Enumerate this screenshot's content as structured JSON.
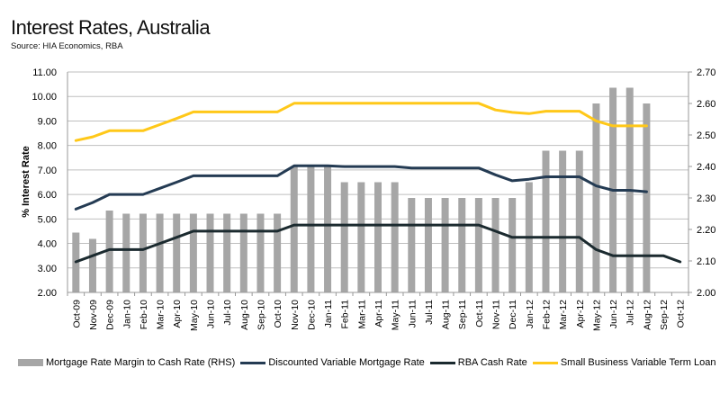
{
  "title": "Interest Rates, Australia",
  "subtitle": "Source: HIA Economics, RBA",
  "colors": {
    "bars": "#a6a6a6",
    "discounted_variable": "#243b53",
    "rba_cash": "#1b2a2f",
    "small_business": "#ffc819",
    "grid": "#bfbfbf",
    "axis": "#999999"
  },
  "chart_data": {
    "type": "bar+line",
    "title": "Interest Rates, Australia",
    "subtitle": "Source: HIA Economics, RBA",
    "xlabel": "",
    "ylabel": "% Interest Rate",
    "ylim": [
      2.0,
      11.0
    ],
    "y_ticks": [
      "2.00",
      "3.00",
      "4.00",
      "5.00",
      "6.00",
      "7.00",
      "8.00",
      "9.00",
      "10.00",
      "11.00"
    ],
    "y2lim": [
      2.0,
      2.7
    ],
    "y2_ticks": [
      "2.00",
      "2.10",
      "2.20",
      "2.30",
      "2.40",
      "2.50",
      "2.60",
      "2.70"
    ],
    "grid": true,
    "legend_position": "bottom",
    "categories": [
      "Oct-09",
      "Nov-09",
      "Dec-09",
      "Jan-10",
      "Feb-10",
      "Mar-10",
      "Apr-10",
      "May-10",
      "Jun-10",
      "Jul-10",
      "Aug-10",
      "Sep-10",
      "Oct-10",
      "Nov-10",
      "Dec-10",
      "Jan-11",
      "Feb-11",
      "Mar-11",
      "Apr-11",
      "May-11",
      "Jun-11",
      "Jul-11",
      "Aug-11",
      "Sep-11",
      "Oct-11",
      "Nov-11",
      "Dec-11",
      "Jan-12",
      "Feb-12",
      "Mar-12",
      "Apr-12",
      "May-12",
      "Jun-12",
      "Jul-12",
      "Aug-12",
      "Sep-12",
      "Oct-12"
    ],
    "series": [
      {
        "name": "Mortgage Rate Margin to Cash Rate (RHS)",
        "type": "bar",
        "axis": "right",
        "values": [
          2.19,
          2.17,
          2.26,
          2.25,
          2.25,
          2.25,
          2.25,
          2.25,
          2.25,
          2.25,
          2.25,
          2.25,
          2.25,
          2.4,
          2.4,
          2.4,
          2.35,
          2.35,
          2.35,
          2.35,
          2.3,
          2.3,
          2.3,
          2.3,
          2.3,
          2.3,
          2.3,
          2.35,
          2.45,
          2.45,
          2.45,
          2.6,
          2.65,
          2.65,
          2.6,
          null,
          null
        ]
      },
      {
        "name": "Discounted Variable Mortgage Rate",
        "type": "line",
        "axis": "left",
        "values": [
          5.4,
          5.67,
          6.0,
          6.0,
          6.0,
          6.25,
          6.5,
          6.76,
          6.76,
          6.76,
          6.76,
          6.76,
          6.76,
          7.17,
          7.17,
          7.17,
          7.14,
          7.14,
          7.14,
          7.14,
          7.08,
          7.08,
          7.08,
          7.08,
          7.08,
          6.8,
          6.56,
          6.62,
          6.72,
          6.72,
          6.72,
          6.35,
          6.17,
          6.17,
          6.11,
          null,
          null
        ]
      },
      {
        "name": "RBA Cash Rate",
        "type": "line",
        "axis": "left",
        "values": [
          3.25,
          3.5,
          3.75,
          3.75,
          3.75,
          4.0,
          4.25,
          4.5,
          4.5,
          4.5,
          4.5,
          4.5,
          4.5,
          4.75,
          4.75,
          4.75,
          4.75,
          4.75,
          4.75,
          4.75,
          4.75,
          4.75,
          4.75,
          4.75,
          4.75,
          4.5,
          4.25,
          4.25,
          4.25,
          4.25,
          4.25,
          3.75,
          3.5,
          3.5,
          3.5,
          3.5,
          3.25
        ]
      },
      {
        "name": "Small Business Variable Term Loan",
        "type": "line",
        "axis": "left",
        "values": [
          8.2,
          8.35,
          8.6,
          8.6,
          8.6,
          8.85,
          9.1,
          9.37,
          9.37,
          9.37,
          9.37,
          9.37,
          9.37,
          9.72,
          9.72,
          9.72,
          9.72,
          9.72,
          9.72,
          9.72,
          9.72,
          9.72,
          9.72,
          9.72,
          9.72,
          9.45,
          9.35,
          9.3,
          9.4,
          9.4,
          9.4,
          9.0,
          8.8,
          8.8,
          8.8,
          null,
          null
        ]
      }
    ]
  }
}
